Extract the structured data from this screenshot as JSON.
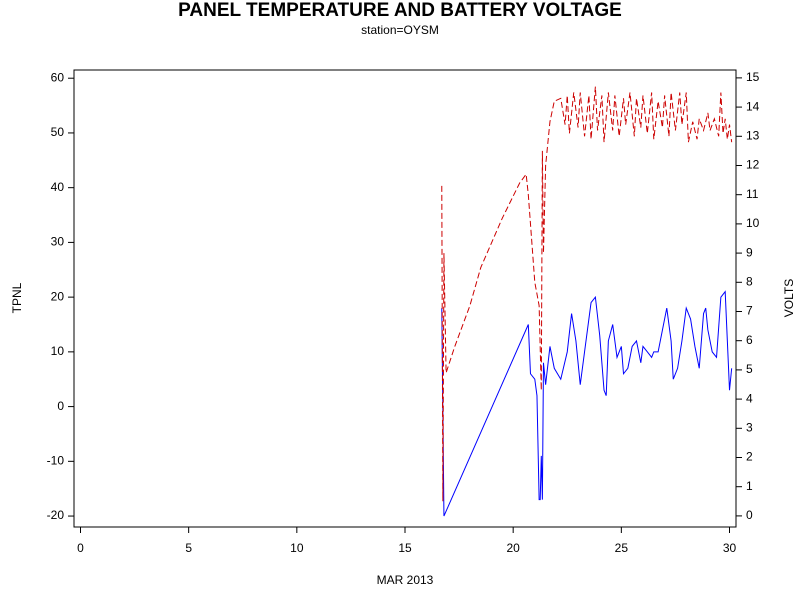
{
  "chart_data": {
    "type": "line",
    "title": "PANEL TEMPERATURE AND BATTERY VOLTAGE",
    "subtitle": "station=OYSM",
    "x_label": "MAR 2013",
    "y_label": "TPNL",
    "y2_label": "VOLTS",
    "xlim": [
      -0.3,
      30.3
    ],
    "xticks": [
      0,
      5,
      10,
      15,
      20,
      25,
      30
    ],
    "ylim": [
      -22,
      61.5
    ],
    "yticks": [
      -20,
      -10,
      0,
      10,
      20,
      30,
      40,
      50,
      60
    ],
    "y2lim": [
      -0.38,
      15.27
    ],
    "y2ticks": [
      0,
      1,
      2,
      3,
      4,
      5,
      6,
      7,
      8,
      9,
      10,
      11,
      12,
      13,
      14,
      15
    ],
    "series": [
      {
        "color": "#0000ff",
        "dash": "solid",
        "axis": "y",
        "x": [
          16.7,
          16.8,
          20.7,
          20.8,
          21.0,
          21.1,
          21.2,
          21.25,
          21.3,
          21.35,
          21.4,
          21.5,
          21.7,
          21.9,
          22.2,
          22.5,
          22.7,
          22.9,
          23.1,
          23.3,
          23.6,
          23.8,
          24.0,
          24.2,
          24.3,
          24.4,
          24.6,
          24.8,
          25.0,
          25.1,
          25.3,
          25.5,
          25.7,
          25.9,
          26.0,
          26.2,
          26.4,
          26.5,
          26.7,
          26.9,
          27.1,
          27.3,
          27.4,
          27.6,
          27.8,
          28.0,
          28.2,
          28.4,
          28.6,
          28.8,
          28.9,
          29.0,
          29.2,
          29.4,
          29.6,
          29.8,
          29.9,
          30.0,
          30.1
        ],
        "values": [
          18,
          -20,
          15,
          6,
          5,
          2,
          -17,
          -17,
          -9,
          -17,
          8,
          4,
          11,
          7,
          5,
          10,
          17,
          12,
          4,
          10,
          19,
          20,
          13,
          3,
          2,
          12,
          15,
          9,
          11,
          6,
          7,
          11,
          12,
          8,
          11,
          10,
          9,
          10,
          10,
          14,
          18,
          12,
          5,
          7,
          12,
          18,
          16,
          11,
          7,
          17,
          18,
          14,
          10,
          9,
          20,
          21,
          12,
          3,
          7
        ]
      },
      {
        "color": "#cc0000",
        "dash": "dashed",
        "axis": "y2",
        "x": [
          16.7,
          16.75,
          16.8,
          16.9,
          17.3,
          18.0,
          18.5,
          19.5,
          20.3,
          20.6,
          20.7,
          21.0,
          21.2,
          21.3,
          21.35,
          21.4,
          21.5,
          21.7,
          21.9,
          22.2,
          22.4,
          22.5,
          22.6,
          22.8,
          23.0,
          23.1,
          23.3,
          23.5,
          23.6,
          23.8,
          23.9,
          24.1,
          24.2,
          24.4,
          24.6,
          24.7,
          24.9,
          25.1,
          25.2,
          25.4,
          25.6,
          25.7,
          25.9,
          26.0,
          26.2,
          26.4,
          26.5,
          26.7,
          26.9,
          27.0,
          27.2,
          27.3,
          27.5,
          27.7,
          27.8,
          28.0,
          28.1,
          28.3,
          28.5,
          28.6,
          28.8,
          29.0,
          29.1,
          29.3,
          29.5,
          29.6,
          29.7,
          29.8,
          29.9,
          30.0,
          30.1
        ],
        "values": [
          11.3,
          0.5,
          9,
          4.9,
          5.8,
          7.2,
          8.5,
          10.2,
          11.4,
          11.7,
          11,
          8,
          7.2,
          4.3,
          12.5,
          9,
          12,
          13.5,
          14.2,
          14.3,
          13.4,
          14.4,
          13.1,
          14.5,
          13.3,
          14.5,
          13.0,
          14.4,
          12.9,
          14.7,
          13.2,
          14.4,
          12.8,
          14.5,
          13.2,
          14.4,
          13.0,
          14.3,
          13.4,
          14.5,
          13.0,
          14.3,
          13.3,
          14.4,
          13.1,
          14.5,
          12.9,
          14.2,
          13.3,
          14.4,
          13.0,
          14.5,
          13.2,
          14.5,
          13.4,
          14.5,
          12.8,
          13.5,
          12.9,
          13.6,
          13.2,
          13.8,
          13.2,
          13.6,
          13.0,
          14.5,
          13.1,
          13.6,
          12.9,
          13.4,
          12.8
        ]
      }
    ]
  }
}
